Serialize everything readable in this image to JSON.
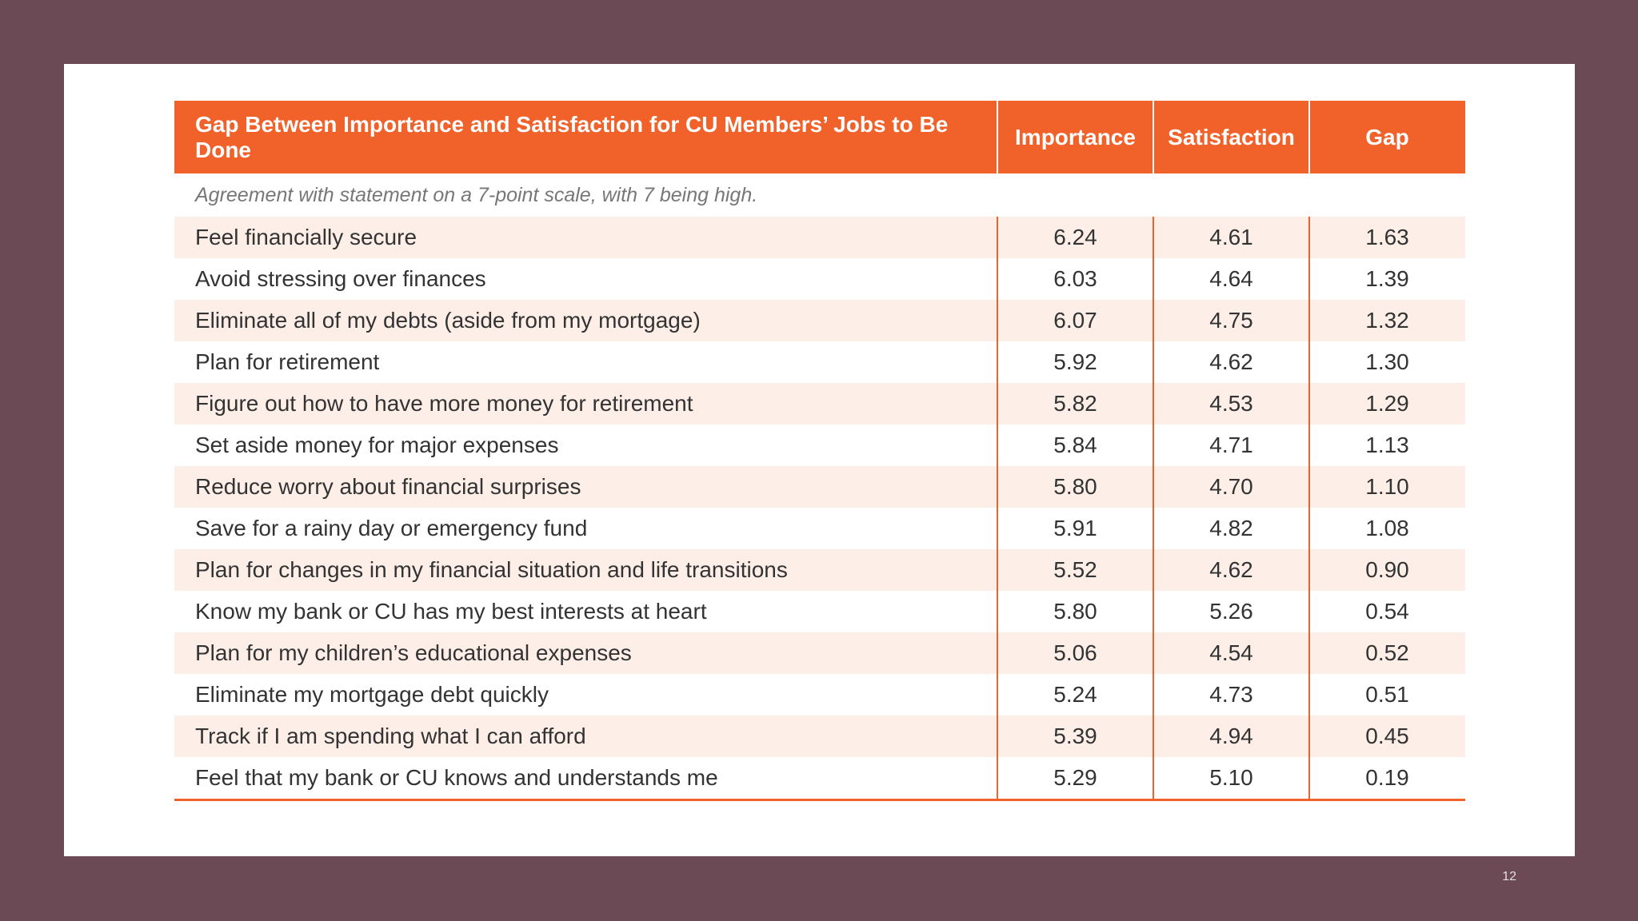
{
  "table": {
    "header": {
      "title": "Gap Between Importance and Satisfaction for CU Members’ Jobs to Be Done",
      "col_importance": "Importance",
      "col_satisfaction": "Satisfaction",
      "col_gap": "Gap"
    },
    "subtitle": "Agreement with statement on a 7-point scale, with 7 being high.",
    "rows": [
      {
        "label": "Feel financially secure",
        "importance": "6.24",
        "satisfaction": "4.61",
        "gap": "1.63"
      },
      {
        "label": "Avoid stressing over finances",
        "importance": "6.03",
        "satisfaction": "4.64",
        "gap": "1.39"
      },
      {
        "label": "Eliminate all of my debts (aside from my mortgage)",
        "importance": "6.07",
        "satisfaction": "4.75",
        "gap": "1.32"
      },
      {
        "label": "Plan for retirement",
        "importance": "5.92",
        "satisfaction": "4.62",
        "gap": "1.30"
      },
      {
        "label": "Figure out how to have more money for retirement",
        "importance": "5.82",
        "satisfaction": "4.53",
        "gap": "1.29"
      },
      {
        "label": "Set aside money for major expenses",
        "importance": "5.84",
        "satisfaction": "4.71",
        "gap": "1.13"
      },
      {
        "label": "Reduce worry about financial surprises",
        "importance": "5.80",
        "satisfaction": "4.70",
        "gap": "1.10"
      },
      {
        "label": "Save for a rainy day or emergency fund",
        "importance": "5.91",
        "satisfaction": "4.82",
        "gap": "1.08"
      },
      {
        "label": "Plan for changes in my financial situation and life transitions",
        "importance": "5.52",
        "satisfaction": "4.62",
        "gap": "0.90"
      },
      {
        "label": "Know my bank or CU has my best interests at heart",
        "importance": "5.80",
        "satisfaction": "5.26",
        "gap": "0.54"
      },
      {
        "label": "Plan for my children’s educational expenses",
        "importance": "5.06",
        "satisfaction": "4.54",
        "gap": "0.52"
      },
      {
        "label": "Eliminate my mortgage debt quickly",
        "importance": "5.24",
        "satisfaction": "4.73",
        "gap": "0.51"
      },
      {
        "label": "Track if I am spending what I can afford",
        "importance": "5.39",
        "satisfaction": "4.94",
        "gap": "0.45"
      },
      {
        "label": "Feel that my bank or CU knows and understands me",
        "importance": "5.29",
        "satisfaction": "5.10",
        "gap": "0.19"
      }
    ]
  },
  "page_number": "12",
  "colors": {
    "accent": "#f0622a",
    "row_shade": "#fdeee8",
    "background": "#6b4a56"
  }
}
